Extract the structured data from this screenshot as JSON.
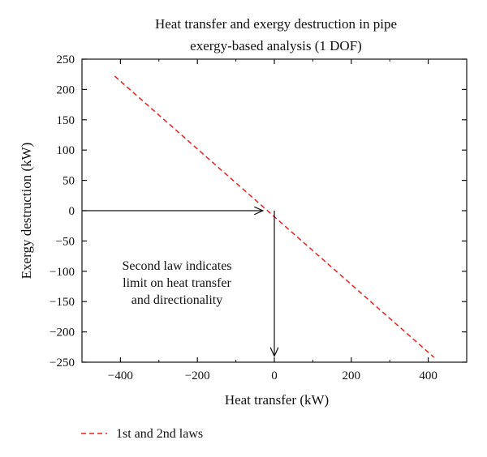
{
  "chart_data": {
    "type": "line",
    "title": [
      "Heat transfer and exergy destruction in pipe",
      "exergy-based analysis (1 DOF)"
    ],
    "xlabel": "Heat transfer (kW)",
    "ylabel": "Exergy destruction (kW)",
    "xlim": [
      -500,
      500
    ],
    "ylim": [
      -250,
      250
    ],
    "xticks": [
      -400,
      -200,
      0,
      200,
      400
    ],
    "xtick_labels": [
      "−400",
      "−200",
      "0",
      "200",
      "400"
    ],
    "yticks": [
      250,
      200,
      150,
      100,
      50,
      0,
      -50,
      -100,
      -150,
      -200,
      -250
    ],
    "ytick_labels": [
      "250",
      "200",
      "150",
      "100",
      "50",
      "0",
      "−50",
      "−100",
      "−150",
      "−200",
      "−250"
    ],
    "grid": false,
    "legend_position": "bottom-left",
    "series": [
      {
        "name": "1st and 2nd laws",
        "style": "dashed",
        "color": "#e8201c",
        "x": [
          -415,
          415
        ],
        "y": [
          222,
          -242
        ]
      }
    ],
    "annotations": [
      {
        "text": [
          "Second law indicates",
          "limit on heat transfer",
          "and directionality"
        ]
      },
      {
        "arrow": "horizontal",
        "from": [
          -500,
          0
        ],
        "to": [
          -30,
          0
        ]
      },
      {
        "arrow": "vertical",
        "from": [
          0,
          0
        ],
        "to": [
          0,
          -240
        ]
      }
    ]
  }
}
